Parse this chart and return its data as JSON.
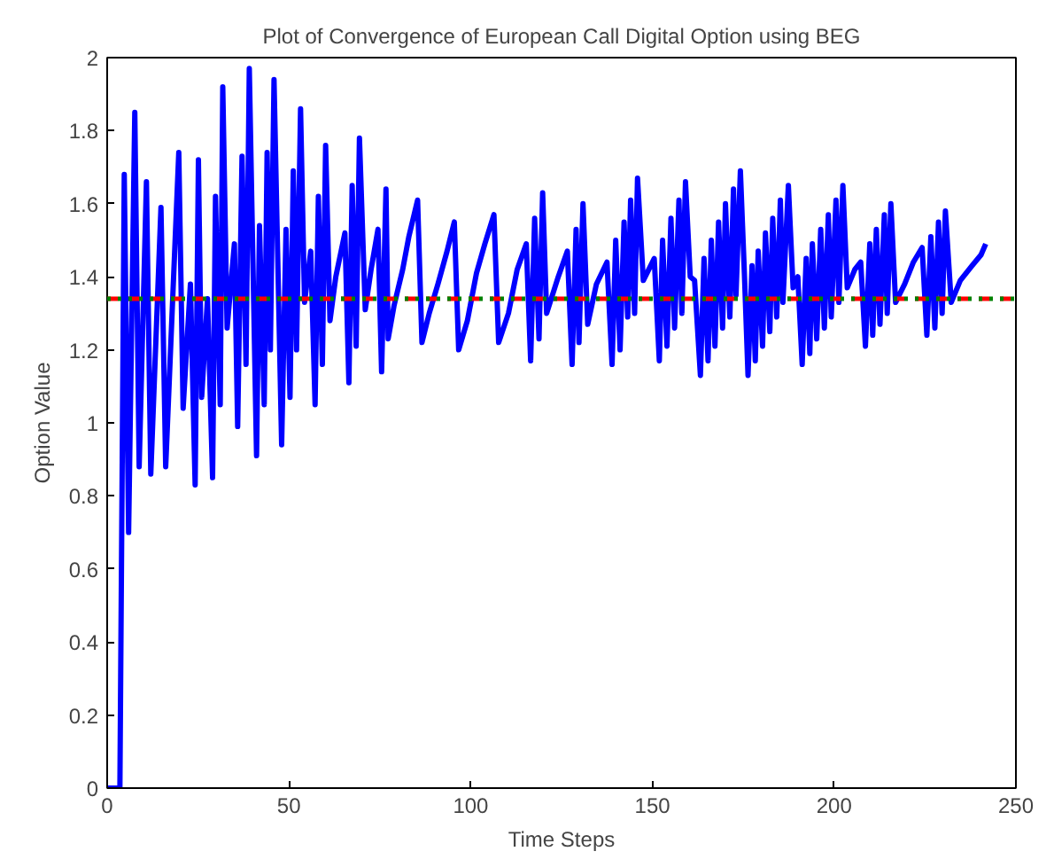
{
  "chart_data": {
    "type": "line",
    "title": "Plot of Convergence of European Call Digital Option using BEG",
    "xlabel": "Time Steps",
    "ylabel": "Option Value",
    "xlim": [
      0,
      250
    ],
    "ylim": [
      0,
      2
    ],
    "xticks": [
      0,
      50,
      100,
      150,
      200,
      250
    ],
    "yticks": [
      0,
      {
        "value": 0.2,
        "label": "0.2"
      },
      {
        "value": 0.4,
        "label": "0.4"
      },
      {
        "value": 0.6,
        "label": "0.6"
      },
      {
        "value": 0.8,
        "label": "0.8"
      },
      1,
      {
        "value": 1.2,
        "label": "1.2"
      },
      {
        "value": 1.4,
        "label": "1.4"
      },
      {
        "value": 1.6,
        "label": "1.6"
      },
      {
        "value": 1.8,
        "label": "1.8"
      },
      2
    ],
    "grid": false,
    "line_style": "solid",
    "ref_lines": [
      {
        "axis": "y",
        "value": 1.34,
        "color": "#ff0000",
        "line_style": "dashed"
      },
      {
        "axis": "y",
        "value": 1.34,
        "color": "#008000",
        "line_style": "dotted"
      }
    ],
    "series": [
      {
        "color": "#0000ff",
        "x": [
          0,
          3.5,
          4.7,
          5.9,
          7.6,
          8.8,
          10.8,
          12.0,
          14.8,
          16.1,
          19.7,
          20.9,
          22.9,
          24.2,
          25.1,
          26.0,
          27.6,
          29.0,
          29.8,
          31.1,
          31.8,
          33.0,
          35.0,
          35.9,
          37.1,
          38.2,
          39.1,
          41.1,
          41.9,
          43.2,
          44.0,
          44.9,
          45.9,
          48.0,
          49.2,
          50.3,
          51.2,
          52.1,
          53.2,
          54.3,
          56.0,
          57.2,
          58.1,
          59.2,
          60.1,
          61.3,
          62.9,
          65.4,
          66.5,
          67.4,
          68.5,
          69.4,
          71.0,
          72.6,
          74.5,
          75.5,
          76.7,
          77.3,
          78.9,
          81.3,
          83.0,
          85.4,
          86.6,
          88.6,
          91.0,
          93.5,
          95.5,
          96.7,
          99.1,
          101.6,
          103.9,
          106.4,
          107.7,
          110.4,
          112.8,
          115.3,
          116.5,
          117.6,
          118.8,
          119.8,
          120.9,
          124.1,
          126.6,
          127.9,
          129.0,
          129.8,
          130.9,
          132.2,
          134.6,
          137.5,
          138.9,
          139.9,
          141.1,
          142.2,
          143.2,
          144.0,
          145.1,
          145.9,
          147.5,
          150.5,
          151.9,
          152.8,
          154.0,
          155.1,
          156.1,
          157.3,
          158.1,
          159.1,
          160.4,
          161.6,
          163.2,
          164.2,
          165.3,
          166.2,
          167.2,
          168.2,
          169.3,
          170.1,
          171.3,
          172.3,
          173.0,
          174.2,
          175.3,
          176.3,
          177.4,
          178.3,
          179.1,
          180.3,
          181.1,
          182.3,
          183.1,
          184.2,
          185.2,
          185.9,
          187.4,
          188.7,
          190.0,
          191.2,
          192.3,
          193.3,
          194.0,
          195.2,
          196.3,
          197.3,
          198.4,
          199.2,
          200.5,
          201.3,
          202.4,
          203.6,
          205.7,
          207.3,
          208.6,
          209.8,
          210.6,
          211.6,
          212.6,
          213.8,
          214.6,
          215.6,
          216.9,
          219.4,
          221.8,
          224.2,
          225.5,
          226.6,
          227.7,
          228.7,
          229.7,
          230.6,
          232.2,
          234.7,
          237.9,
          240.4,
          241.7
        ],
        "values": [
          0,
          0,
          1.68,
          0.7,
          1.85,
          0.88,
          1.66,
          0.86,
          1.59,
          0.88,
          1.74,
          1.04,
          1.38,
          0.83,
          1.72,
          1.07,
          1.34,
          0.85,
          1.62,
          1.05,
          1.92,
          1.26,
          1.49,
          0.99,
          1.73,
          1.16,
          1.97,
          0.91,
          1.54,
          1.05,
          1.74,
          1.2,
          1.94,
          0.94,
          1.53,
          1.07,
          1.69,
          1.2,
          1.86,
          1.33,
          1.47,
          1.05,
          1.62,
          1.16,
          1.76,
          1.28,
          1.4,
          1.52,
          1.11,
          1.65,
          1.21,
          1.78,
          1.31,
          1.42,
          1.53,
          1.14,
          1.64,
          1.23,
          1.32,
          1.42,
          1.51,
          1.61,
          1.22,
          1.3,
          1.38,
          1.47,
          1.55,
          1.2,
          1.28,
          1.41,
          1.49,
          1.57,
          1.22,
          1.3,
          1.42,
          1.49,
          1.17,
          1.56,
          1.23,
          1.63,
          1.3,
          1.4,
          1.47,
          1.16,
          1.53,
          1.22,
          1.6,
          1.27,
          1.38,
          1.44,
          1.16,
          1.5,
          1.2,
          1.55,
          1.29,
          1.61,
          1.3,
          1.67,
          1.39,
          1.45,
          1.17,
          1.5,
          1.21,
          1.56,
          1.26,
          1.61,
          1.3,
          1.66,
          1.4,
          1.39,
          1.13,
          1.45,
          1.17,
          1.5,
          1.21,
          1.55,
          1.26,
          1.6,
          1.29,
          1.64,
          1.35,
          1.69,
          1.41,
          1.13,
          1.43,
          1.17,
          1.47,
          1.21,
          1.52,
          1.25,
          1.56,
          1.29,
          1.61,
          1.33,
          1.65,
          1.37,
          1.4,
          1.16,
          1.45,
          1.19,
          1.49,
          1.23,
          1.53,
          1.26,
          1.57,
          1.29,
          1.61,
          1.33,
          1.65,
          1.37,
          1.42,
          1.44,
          1.21,
          1.49,
          1.24,
          1.53,
          1.27,
          1.57,
          1.3,
          1.6,
          1.33,
          1.38,
          1.44,
          1.48,
          1.24,
          1.51,
          1.26,
          1.55,
          1.3,
          1.58,
          1.33,
          1.39,
          1.43,
          1.46,
          1.49
        ]
      }
    ]
  }
}
